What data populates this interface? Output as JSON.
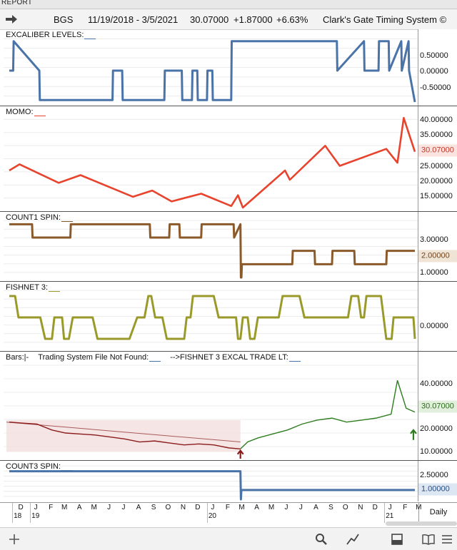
{
  "app": {
    "title": "REPORT"
  },
  "header": {
    "symbol": "BGS",
    "date_range": "11/19/2018 - 3/5/2021",
    "last_price": "30.07000",
    "change": "+1.87000",
    "change_pct": "+6.63%",
    "system": "Clark's Gate Timing System ©"
  },
  "panels": {
    "excaliber": {
      "title": "EXCALIBER LEVELS:",
      "title_color": "#4a73a8",
      "ticks": [
        "0.50000",
        "0.00000",
        "-0.50000"
      ]
    },
    "momo": {
      "title": "MOMO:",
      "title_color": "#e8432d",
      "ticks": [
        "40.00000",
        "35.00000",
        "25.00000",
        "20.00000",
        "15.00000"
      ],
      "last_value": "30.07000"
    },
    "count1": {
      "title": "COUNT1 SPIN:",
      "title_color": "#8b5a2b",
      "ticks": [
        "3.00000",
        "1.00000"
      ],
      "last_value": "2.00000"
    },
    "fishnet": {
      "title": "FISHNET 3:",
      "title_color": "#9a9a2a",
      "ticks": [
        "0.00000"
      ]
    },
    "bars": {
      "title": "Bars:|-",
      "title2": "Trading System File Not Found:",
      "title3": "-->FISHNET 3 EXCAL TRADE LT:",
      "title_color": "#4a73a8",
      "ticks": [
        "40.00000",
        "20.00000",
        "10.00000"
      ],
      "last_value": "30.07000"
    },
    "count3": {
      "title": "COUNT3 SPIN:",
      "title_color": "#4a73a8",
      "ticks": [
        "2.50000"
      ],
      "last_value": "1.00000"
    }
  },
  "x_axis": {
    "months": [
      "D",
      "J",
      "F",
      "M",
      "A",
      "M",
      "J",
      "J",
      "A",
      "S",
      "O",
      "N",
      "D",
      "J",
      "F",
      "M",
      "A",
      "M",
      "J",
      "J",
      "A",
      "S",
      "O",
      "N",
      "D",
      "J",
      "F",
      "M"
    ],
    "years": [
      "18",
      "19",
      "20",
      "21"
    ],
    "interval": "Daily"
  },
  "toolbar": {
    "icons": [
      "add-icon",
      "search-icon",
      "line-chart-icon",
      "panel-layout-icon",
      "book-icon",
      "menu-icon"
    ]
  },
  "chart_data": [
    {
      "type": "line",
      "title": "EXCALIBER LEVELS",
      "ylim": [
        -0.8,
        0.8
      ],
      "x": [
        "2018-11-19",
        "2018-11-27",
        "2018-11-28",
        "2019-01-20",
        "2019-01-21",
        "2019-06-20",
        "2019-06-21",
        "2019-07-10",
        "2019-07-11",
        "2019-10-05",
        "2019-10-06",
        "2019-11-10",
        "2019-11-11",
        "2019-12-01",
        "2019-12-02",
        "2019-12-12",
        "2019-12-13",
        "2020-01-01",
        "2020-01-02",
        "2020-01-12",
        "2020-01-13",
        "2020-02-20",
        "2020-02-21",
        "2020-09-25",
        "2020-09-26",
        "2020-11-20",
        "2020-11-21",
        "2020-12-20",
        "2020-12-21",
        "2021-01-10",
        "2021-01-11",
        "2021-02-05",
        "2021-02-06",
        "2021-02-20",
        "2021-02-21",
        "2021-03-05"
      ],
      "y": [
        0,
        0,
        0.75,
        0,
        -0.75,
        -0.75,
        0,
        0,
        -0.75,
        -0.75,
        0,
        0,
        -0.75,
        -0.75,
        0,
        0,
        -0.75,
        -0.75,
        0,
        0,
        -0.75,
        -0.75,
        0.75,
        0.75,
        0,
        0.75,
        0,
        0,
        0.75,
        0.75,
        0,
        0.75,
        0,
        0.75,
        0,
        -0.8
      ],
      "color": "#4a73a8"
    },
    {
      "type": "line",
      "title": "MOMO",
      "ylim": [
        12,
        42
      ],
      "x": [
        "2018-11-19",
        "2018-12-10",
        "2019-03-01",
        "2019-04-15",
        "2019-08-01",
        "2019-09-10",
        "2019-10-20",
        "2019-12-20",
        "2020-02-20",
        "2020-03-05",
        "2020-03-15",
        "2020-06-10",
        "2020-06-20",
        "2020-09-01",
        "2020-10-01",
        "2021-01-05",
        "2021-01-28",
        "2021-02-10",
        "2021-03-05"
      ],
      "y": [
        24,
        26,
        20,
        22.5,
        15.5,
        17.5,
        14,
        16.5,
        12.5,
        16,
        12,
        24,
        21,
        32,
        25.5,
        31,
        26.5,
        41,
        30.07
      ],
      "color": "#e8432d"
    },
    {
      "type": "line",
      "title": "COUNT1 SPIN",
      "ylim": [
        0,
        4.5
      ],
      "x": [
        "2018-11-19",
        "2019-01-05",
        "2019-01-06",
        "2019-03-25",
        "2019-03-26",
        "2019-09-05",
        "2019-09-06",
        "2019-10-15",
        "2019-10-16",
        "2019-11-05",
        "2019-11-06",
        "2019-12-20",
        "2019-12-21",
        "2020-02-25",
        "2020-02-26",
        "2020-03-10",
        "2020-03-11",
        "2020-03-12",
        "2020-03-13",
        "2020-06-25",
        "2020-06-26",
        "2020-08-10",
        "2020-08-11",
        "2020-09-15",
        "2020-09-16",
        "2020-10-31",
        "2020-11-01",
        "2021-01-05",
        "2021-01-06",
        "2021-03-05"
      ],
      "y": [
        4,
        4,
        3,
        3,
        4,
        4,
        3,
        3,
        4,
        4,
        3,
        3,
        4,
        4,
        3,
        4,
        0,
        0,
        1,
        1,
        2,
        2,
        1,
        1,
        2,
        2,
        1,
        1,
        2,
        2
      ],
      "color": "#8b5a2b"
    },
    {
      "type": "line",
      "title": "FISHNET 3",
      "ylim": [
        -1.4,
        1.4
      ],
      "x": [
        "2018-11-19",
        "2018-12-01",
        "2018-12-08",
        "2019-01-22",
        "2019-02-01",
        "2019-02-15",
        "2019-02-20",
        "2019-03-08",
        "2019-03-12",
        "2019-03-22",
        "2019-03-30",
        "2019-05-10",
        "2019-05-20",
        "2019-07-25",
        "2019-08-10",
        "2019-08-25",
        "2019-09-02",
        "2019-09-08",
        "2019-09-16",
        "2019-10-01",
        "2019-10-10",
        "2019-11-15",
        "2019-11-20",
        "2019-11-28",
        "2019-12-03",
        "2020-01-15",
        "2020-01-25",
        "2020-03-01",
        "2020-03-05",
        "2020-03-10",
        "2020-03-15",
        "2020-03-25",
        "2020-03-30",
        "2020-04-08",
        "2020-04-15",
        "2020-05-28",
        "2020-06-05",
        "2020-07-10",
        "2020-07-20",
        "2020-10-18",
        "2020-10-25",
        "2020-11-08",
        "2020-11-14",
        "2020-11-20",
        "2020-11-25",
        "2020-12-25",
        "2021-01-05",
        "2021-01-16",
        "2021-01-20",
        "2021-03-02",
        "2021-03-05"
      ],
      "y": [
        1,
        1,
        0,
        0,
        -1,
        -1,
        0,
        0,
        -1,
        -1,
        0,
        0,
        -1,
        -1,
        0,
        0,
        1,
        1,
        0,
        0,
        -1,
        -1,
        0,
        0,
        1,
        1,
        0,
        0,
        -1,
        -1,
        0,
        0,
        -1,
        -1,
        0,
        0,
        1,
        1,
        0,
        0,
        1,
        1,
        0,
        0,
        1,
        1,
        -1,
        -1,
        0,
        0,
        -1
      ],
      "color": "#9a9a2a"
    },
    {
      "type": "line",
      "title": "Bars",
      "ylim": [
        8,
        54
      ],
      "x": [
        "2018-11-19",
        "2018-12-15",
        "2019-01-15",
        "2019-02-15",
        "2019-03-15",
        "2019-04-15",
        "2019-05-15",
        "2019-06-15",
        "2019-07-15",
        "2019-08-15",
        "2019-09-15",
        "2019-10-15",
        "2019-11-15",
        "2019-12-15",
        "2020-01-15",
        "2020-02-15",
        "2020-03-10",
        "2020-03-25",
        "2020-04-15",
        "2020-05-15",
        "2020-06-15",
        "2020-07-15",
        "2020-08-15",
        "2020-09-15",
        "2020-10-15",
        "2020-11-15",
        "2020-12-15",
        "2021-01-15",
        "2021-01-28",
        "2021-02-15",
        "2021-03-05"
      ],
      "y": [
        25,
        24.5,
        24,
        21,
        19.5,
        19,
        18.5,
        17.5,
        16.5,
        15,
        15.5,
        14.5,
        13.5,
        14,
        13.5,
        12,
        11.5,
        15,
        17,
        19,
        21,
        24,
        26,
        27,
        25,
        26,
        27,
        29,
        46,
        32,
        30.07
      ],
      "color": "#2e7d1f",
      "down_color": "#8a1c1c"
    },
    {
      "type": "line",
      "title": "COUNT3 SPIN",
      "ylim": [
        0,
        3.5
      ],
      "x": [
        "2018-11-19",
        "2020-03-10",
        "2020-03-11",
        "2020-03-12",
        "2021-03-05"
      ],
      "y": [
        3,
        3,
        0,
        1,
        1
      ],
      "color": "#4a73a8"
    }
  ]
}
